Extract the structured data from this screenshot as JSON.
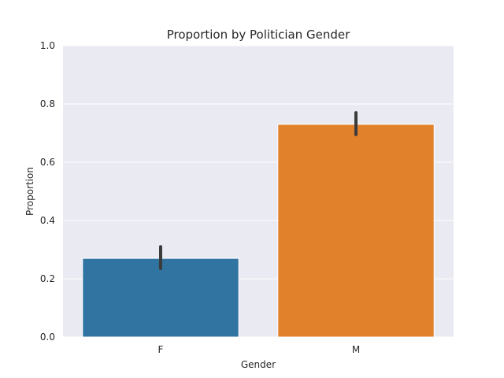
{
  "chart_data": {
    "type": "bar",
    "title": "Proportion by Politician Gender",
    "xlabel": "Gender",
    "ylabel": "Proportion",
    "categories": [
      "F",
      "M"
    ],
    "values": [
      0.27,
      0.73
    ],
    "error_bars": [
      [
        0.235,
        0.31
      ],
      [
        0.695,
        0.77
      ]
    ],
    "ylim": [
      0,
      1.0
    ],
    "yticks": [
      "0.0",
      "0.2",
      "0.4",
      "0.6",
      "0.8",
      "1.0"
    ],
    "grid": true,
    "colors": {
      "background": "#eaeaf2",
      "grid": "#ffffff",
      "bars": [
        "#3274a1",
        "#e1812c"
      ],
      "error": "#3b3b3b"
    }
  }
}
